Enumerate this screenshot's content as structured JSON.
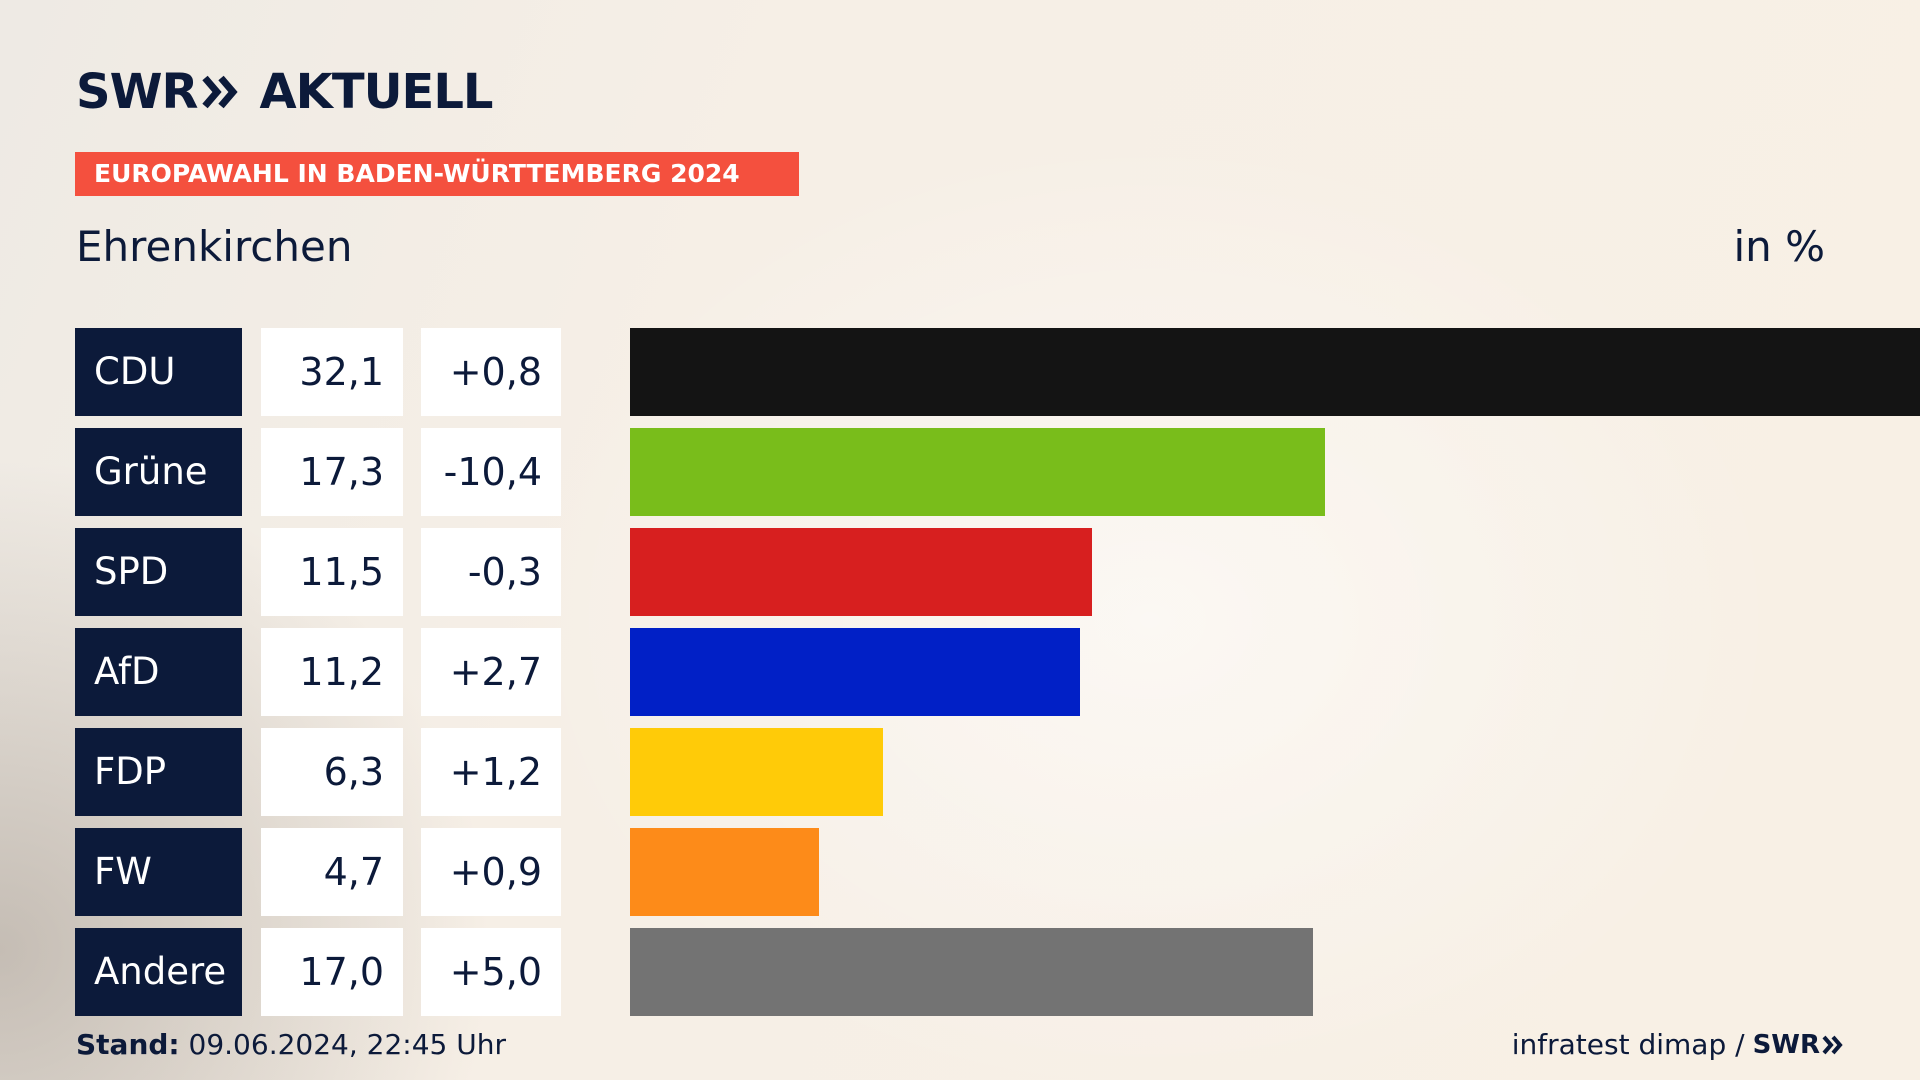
{
  "brand": {
    "name": "SWR",
    "product": "AKTUELL"
  },
  "banner": "EUROPAWAHL IN BADEN-WÜRTTEMBERG 2024",
  "subtitle": "Ehrenkirchen",
  "unit": "in %",
  "footer": {
    "stand_label": "Stand:",
    "stand_value": "09.06.2024, 22:45 Uhr",
    "source": "infratest dimap /",
    "source_logo": "SWR"
  },
  "colors": {
    "navy": "#0c1a3a",
    "accent": "#f4503e"
  },
  "chart_data": {
    "type": "bar",
    "orientation": "horizontal",
    "xlim": [
      0,
      32.1
    ],
    "categories": [
      "CDU",
      "Grüne",
      "SPD",
      "AfD",
      "FDP",
      "FW",
      "Andere"
    ],
    "values": [
      32.1,
      17.3,
      11.5,
      11.2,
      6.3,
      4.7,
      17.0
    ],
    "value_labels": [
      "32,1",
      "17,3",
      "11,5",
      "11,2",
      "6,3",
      "4,7",
      "17,0"
    ],
    "diffs": [
      0.8,
      -10.4,
      -0.3,
      2.7,
      1.2,
      0.9,
      5.0
    ],
    "diff_labels": [
      "+0,8",
      "-10,4",
      "-0,3",
      "+2,7",
      "+1,2",
      "+0,9",
      "+5,0"
    ],
    "bar_colors": [
      "#141414",
      "#79bd1b",
      "#d71f1f",
      "#0120c6",
      "#ffcb08",
      "#fd8b19",
      "#737373"
    ]
  }
}
